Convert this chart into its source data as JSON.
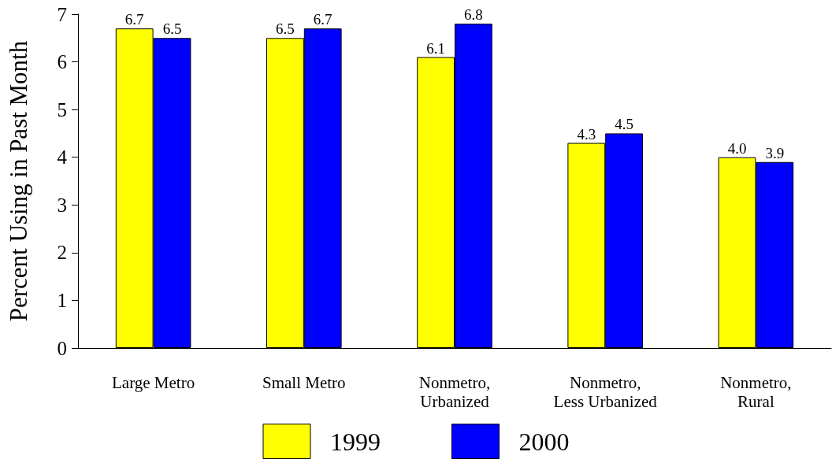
{
  "chart_data": {
    "type": "bar",
    "ylabel": "Percent Using in Past Month",
    "categories": [
      "Large Metro",
      "Small Metro",
      "Nonmetro,\nUrbanized",
      "Nonmetro,\nLess Urbanized",
      "Nonmetro,\nRural"
    ],
    "series": [
      {
        "name": "1999",
        "color": "#ffff00",
        "values": [
          6.7,
          6.5,
          6.1,
          4.3,
          4.0
        ],
        "value_labels": [
          "6.7",
          "6.5",
          "6.1",
          "4.3",
          "4.0"
        ]
      },
      {
        "name": "2000",
        "color": "#0000ff",
        "values": [
          6.5,
          6.7,
          6.8,
          4.5,
          3.9
        ],
        "value_labels": [
          "6.5",
          "6.7",
          "6.8",
          "4.5",
          "3.9"
        ]
      }
    ],
    "ylim": [
      0,
      7
    ],
    "yticks": [
      0,
      1,
      2,
      3,
      4,
      5,
      6,
      7
    ],
    "grid": false,
    "legend": "bottom"
  }
}
